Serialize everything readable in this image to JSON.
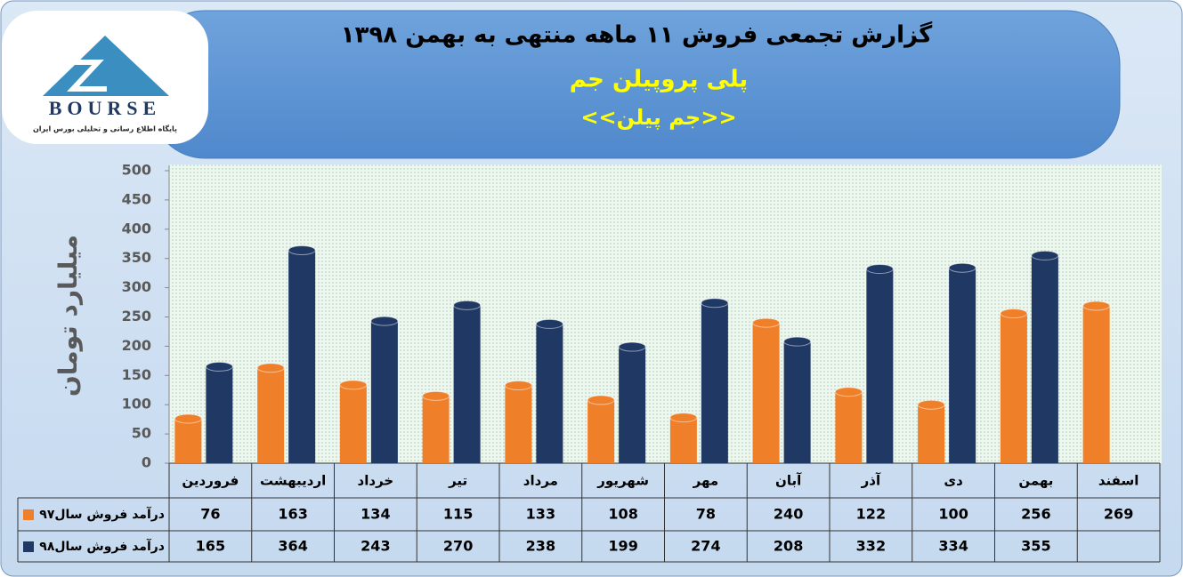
{
  "logo": {
    "name": "BOURSE",
    "tagline": "پایگاه اطلاع رسانی و تحلیلی بورس ایران"
  },
  "chart_data": {
    "type": "bar",
    "title": "گزارش تجمعی فروش  ۱۱ ماهه منتهی به بهمن ۱۳۹۸",
    "subtitle": "پلی پروپیلن جم",
    "note": "<<جم پیلن>>",
    "y_label": "میلیارد تومان",
    "categories": [
      "فروردین",
      "اردیبهشت",
      "خرداد",
      "تیر",
      "مرداد",
      "شهریور",
      "مهر",
      "آبان",
      "آذر",
      "دی",
      "بهمن",
      "اسفند"
    ],
    "series": [
      {
        "name": "درآمد فروش سال۹۷",
        "color": "#f07f2a",
        "values": [
          76,
          163,
          134,
          115,
          133,
          108,
          78,
          240,
          122,
          100,
          256,
          269
        ]
      },
      {
        "name": "درآمد فروش سال۹۸",
        "color": "#1f3864",
        "values": [
          165,
          364,
          243,
          270,
          238,
          199,
          274,
          208,
          332,
          334,
          355,
          null
        ]
      }
    ],
    "ylim": [
      0,
      500
    ],
    "yticks": [
      0,
      50,
      100,
      150,
      200,
      250,
      300,
      350,
      400,
      450,
      500
    ],
    "grid": false
  }
}
